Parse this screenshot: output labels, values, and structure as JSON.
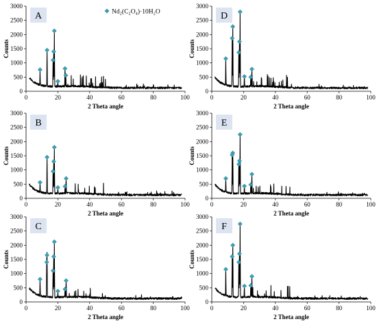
{
  "figure": {
    "legend_label": "Nd₂(C₂O₄)·10H₂O",
    "legend_marker_color": "#3aa0b5",
    "trace_color": "#000000",
    "panel_label_bg": "#dde4f1"
  },
  "chart_data": [
    {
      "type": "line",
      "panel_label": "A",
      "xlabel": "2 Theta angle",
      "ylabel": "Counts",
      "xlim": [
        0,
        100
      ],
      "ylim": [
        0,
        3000
      ],
      "xticks": [
        0,
        20,
        40,
        60,
        80,
        100
      ],
      "yticks": [
        0,
        500,
        1000,
        1500,
        2000,
        2500,
        3000
      ],
      "markers": [
        {
          "x": 8.8,
          "y": 760
        },
        {
          "x": 13.2,
          "y": 1450
        },
        {
          "x": 17.0,
          "y": 1100
        },
        {
          "x": 17.4,
          "y": 1400
        },
        {
          "x": 17.8,
          "y": 2130
        },
        {
          "x": 20.0,
          "y": 350
        },
        {
          "x": 24.5,
          "y": 800
        },
        {
          "x": 25.0,
          "y": 560
        }
      ]
    },
    {
      "type": "line",
      "panel_label": "D",
      "xlabel": "2 Theta angle",
      "ylabel": "Counts",
      "xlim": [
        0,
        100
      ],
      "ylim": [
        0,
        3000
      ],
      "xticks": [
        0,
        20,
        40,
        60,
        80,
        100
      ],
      "yticks": [
        0,
        500,
        1000,
        1500,
        2000,
        2500,
        3000
      ],
      "markers": [
        {
          "x": 8.8,
          "y": 1150
        },
        {
          "x": 13.2,
          "y": 2280
        },
        {
          "x": 12.8,
          "y": 1870
        },
        {
          "x": 17.0,
          "y": 1370
        },
        {
          "x": 17.4,
          "y": 1750
        },
        {
          "x": 17.8,
          "y": 2800
        },
        {
          "x": 20.5,
          "y": 520
        },
        {
          "x": 24.5,
          "y": 500
        },
        {
          "x": 25.2,
          "y": 780
        }
      ]
    },
    {
      "type": "line",
      "panel_label": "B",
      "xlabel": "2 Theta angle",
      "ylabel": "Counts",
      "xlim": [
        0,
        100
      ],
      "ylim": [
        0,
        3000
      ],
      "xticks": [
        0,
        20,
        40,
        60,
        80,
        100
      ],
      "yticks": [
        0,
        500,
        1000,
        1500,
        2000,
        2500,
        3000
      ],
      "markers": [
        {
          "x": 8.8,
          "y": 560
        },
        {
          "x": 13.2,
          "y": 1450
        },
        {
          "x": 17.0,
          "y": 950
        },
        {
          "x": 17.4,
          "y": 1300
        },
        {
          "x": 17.8,
          "y": 1800
        },
        {
          "x": 20.0,
          "y": 380
        },
        {
          "x": 24.5,
          "y": 420
        },
        {
          "x": 25.2,
          "y": 700
        }
      ]
    },
    {
      "type": "line",
      "panel_label": "E",
      "xlabel": "2 Theta angle",
      "ylabel": "Counts",
      "xlim": [
        0,
        100
      ],
      "ylim": [
        0,
        3000
      ],
      "xticks": [
        0,
        20,
        40,
        60,
        80,
        100
      ],
      "yticks": [
        0,
        500,
        1000,
        1500,
        2000,
        2500,
        3000
      ],
      "markers": [
        {
          "x": 8.8,
          "y": 700
        },
        {
          "x": 13.2,
          "y": 1600
        },
        {
          "x": 12.8,
          "y": 1530
        },
        {
          "x": 17.0,
          "y": 1200
        },
        {
          "x": 17.4,
          "y": 1320
        },
        {
          "x": 17.8,
          "y": 2250
        },
        {
          "x": 20.5,
          "y": 430
        },
        {
          "x": 24.5,
          "y": 480
        },
        {
          "x": 25.2,
          "y": 850
        }
      ]
    },
    {
      "type": "line",
      "panel_label": "C",
      "xlabel": "2 Theta angle",
      "ylabel": "Counts",
      "xlim": [
        0,
        100
      ],
      "ylim": [
        0,
        3000
      ],
      "xticks": [
        0,
        20,
        40,
        60,
        80,
        100
      ],
      "yticks": [
        0,
        500,
        1000,
        1500,
        2000,
        2500,
        3000
      ],
      "markers": [
        {
          "x": 8.8,
          "y": 800
        },
        {
          "x": 13.2,
          "y": 1650
        },
        {
          "x": 13.0,
          "y": 1400
        },
        {
          "x": 17.0,
          "y": 1100
        },
        {
          "x": 17.4,
          "y": 1600
        },
        {
          "x": 17.8,
          "y": 2120
        },
        {
          "x": 20.0,
          "y": 380
        },
        {
          "x": 24.5,
          "y": 450
        },
        {
          "x": 25.2,
          "y": 750
        }
      ]
    },
    {
      "type": "line",
      "panel_label": "F",
      "xlabel": "2 Theta angle",
      "ylabel": "Counts",
      "xlim": [
        0,
        100
      ],
      "ylim": [
        0,
        3000
      ],
      "xticks": [
        0,
        20,
        40,
        60,
        80,
        100
      ],
      "yticks": [
        0,
        500,
        1000,
        1500,
        2000,
        2500,
        3000
      ],
      "markers": [
        {
          "x": 8.8,
          "y": 1150
        },
        {
          "x": 13.2,
          "y": 2000
        },
        {
          "x": 12.8,
          "y": 1600
        },
        {
          "x": 17.0,
          "y": 1400
        },
        {
          "x": 17.4,
          "y": 1700
        },
        {
          "x": 17.8,
          "y": 2750
        },
        {
          "x": 20.5,
          "y": 560
        },
        {
          "x": 24.5,
          "y": 580
        },
        {
          "x": 25.2,
          "y": 900
        }
      ]
    }
  ]
}
